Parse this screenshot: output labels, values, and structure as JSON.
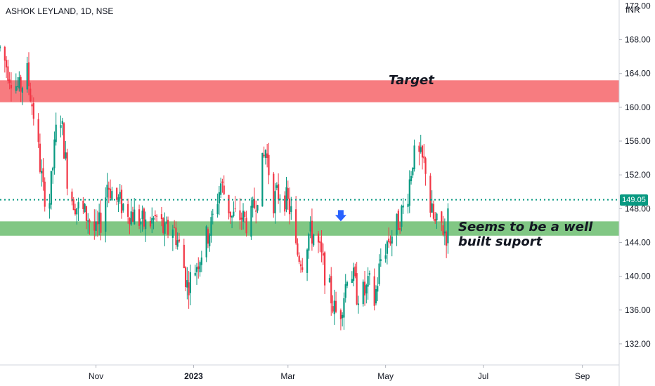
{
  "header": {
    "ticker": "ASHOK LEYLAND, 1D, NSE",
    "currency": "INR"
  },
  "annotations": {
    "target": "Target",
    "support_line1": "Seems to be a well",
    "support_line2": "built suport"
  },
  "colors": {
    "up": "#089981",
    "down": "#f23645",
    "target_zone": "#f77c80",
    "support_zone": "#81c784",
    "price_line": "#089981",
    "arrow": "#2962ff"
  },
  "chart_data": {
    "type": "candlestick",
    "title": "ASHOK LEYLAND, 1D, NSE",
    "currency": "INR",
    "last_price": 149.05,
    "last_price_label": "149.05",
    "y_ticks": [
      "132.00",
      "136.00",
      "140.00",
      "144.00",
      "148.00",
      "152.00",
      "156.00",
      "160.00",
      "164.00",
      "168.00"
    ],
    "y_top_partial": "172.00",
    "ylim": [
      129.5,
      172.7
    ],
    "x_ticks": [
      {
        "label": "Nov",
        "date": "2022-11-01"
      },
      {
        "label": "2023",
        "date": "2023-01-01"
      },
      {
        "label": "Mar",
        "date": "2023-03-01"
      },
      {
        "label": "May",
        "date": "2023-05-01"
      },
      {
        "label": "Jul",
        "date": "2023-07-01"
      },
      {
        "label": "Sep",
        "date": "2023-09-01"
      }
    ],
    "xlim": [
      "2022-09-02",
      "2023-09-24"
    ],
    "zones": [
      {
        "name": "Target",
        "from": 160.6,
        "to": 163.2
      },
      {
        "name": "Support",
        "from": 144.8,
        "to": 146.5
      }
    ],
    "arrow": {
      "date": "2023-04-03",
      "price": 147
    },
    "waypoints": [
      [
        "2022-09-02",
        167
      ],
      [
        "2022-09-08",
        164
      ],
      [
        "2022-09-14",
        162
      ],
      [
        "2022-09-19",
        164
      ],
      [
        "2022-09-24",
        158
      ],
      [
        "2022-09-29",
        150
      ],
      [
        "2022-10-03",
        149
      ],
      [
        "2022-10-07",
        157
      ],
      [
        "2022-10-10",
        159
      ],
      [
        "2022-10-15",
        150
      ],
      [
        "2022-10-21",
        148
      ],
      [
        "2022-10-27",
        147
      ],
      [
        "2022-11-01",
        145
      ],
      [
        "2022-11-05",
        147
      ],
      [
        "2022-11-08",
        151
      ],
      [
        "2022-11-14",
        149
      ],
      [
        "2022-11-20",
        148
      ],
      [
        "2022-11-26",
        147
      ],
      [
        "2022-12-02",
        146
      ],
      [
        "2022-12-10",
        147
      ],
      [
        "2022-12-14",
        145
      ],
      [
        "2022-12-19",
        146
      ],
      [
        "2022-12-24",
        143
      ],
      [
        "2022-12-28",
        139
      ],
      [
        "2022-12-31",
        140
      ],
      [
        "2023-01-06",
        143
      ],
      [
        "2023-01-12",
        146
      ],
      [
        "2023-01-18",
        151
      ],
      [
        "2023-01-25",
        147
      ],
      [
        "2023-01-31",
        147
      ],
      [
        "2023-02-05",
        146
      ],
      [
        "2023-02-10",
        150
      ],
      [
        "2023-02-15",
        155
      ],
      [
        "2023-02-20",
        149
      ],
      [
        "2023-02-24",
        150
      ],
      [
        "2023-02-28",
        149
      ],
      [
        "2023-03-04",
        147
      ],
      [
        "2023-03-06",
        143
      ],
      [
        "2023-03-10",
        142
      ],
      [
        "2023-03-14",
        145
      ],
      [
        "2023-03-18",
        145
      ],
      [
        "2023-03-22",
        142
      ],
      [
        "2023-03-26",
        139
      ],
      [
        "2023-03-30",
        136
      ],
      [
        "2023-04-02",
        135
      ],
      [
        "2023-04-06",
        139
      ],
      [
        "2023-04-08",
        142
      ],
      [
        "2023-04-13",
        138
      ],
      [
        "2023-04-18",
        138
      ],
      [
        "2023-04-21",
        139
      ],
      [
        "2023-04-24",
        137
      ],
      [
        "2023-04-28",
        142
      ],
      [
        "2023-05-02",
        144
      ],
      [
        "2023-05-05",
        145
      ],
      [
        "2023-05-08",
        146
      ],
      [
        "2023-05-12",
        148
      ],
      [
        "2023-05-15",
        150
      ],
      [
        "2023-05-18",
        154
      ],
      [
        "2023-05-22",
        154
      ],
      [
        "2023-05-26",
        153
      ],
      [
        "2023-05-29",
        148
      ],
      [
        "2023-06-01",
        146
      ],
      [
        "2023-06-05",
        146
      ],
      [
        "2023-06-08",
        145
      ],
      [
        "2023-06-10",
        149
      ]
    ]
  }
}
